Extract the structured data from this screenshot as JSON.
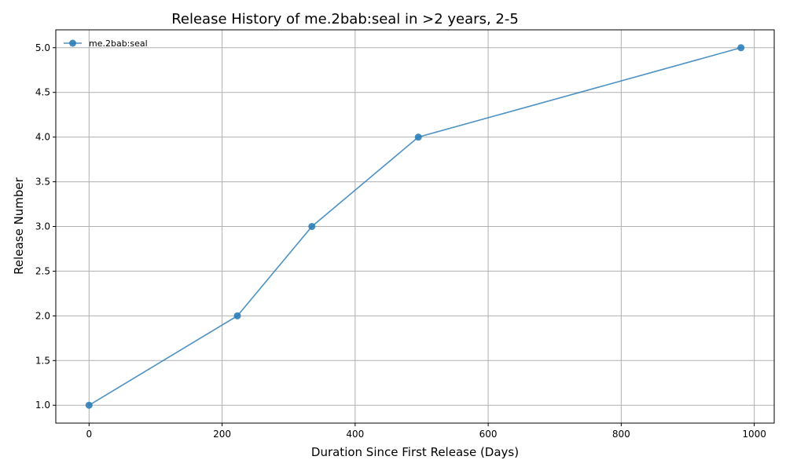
{
  "chart_data": {
    "type": "line",
    "title": "Release History of me.2bab:seal in >2 years, 2-5",
    "xlabel": "Duration Since First Release (Days)",
    "ylabel": "Release Number",
    "xlim": [
      -50,
      1030
    ],
    "ylim": [
      0.8,
      5.2
    ],
    "x_ticks": [
      0,
      200,
      400,
      600,
      800,
      1000
    ],
    "y_ticks": [
      1.0,
      1.5,
      2.0,
      2.5,
      3.0,
      3.5,
      4.0,
      4.5,
      5.0
    ],
    "x_tick_labels": [
      "0",
      "200",
      "400",
      "600",
      "800",
      "1000"
    ],
    "y_tick_labels": [
      "1.0",
      "1.5",
      "2.0",
      "2.5",
      "3.0",
      "3.5",
      "4.0",
      "4.5",
      "5.0"
    ],
    "grid": true,
    "legend_position": "top-left",
    "series": [
      {
        "name": "me.2bab:seal",
        "color": "#2e7fb8",
        "x": [
          0,
          223,
          335,
          495,
          980
        ],
        "y": [
          1,
          2,
          3,
          4,
          5
        ]
      }
    ]
  }
}
